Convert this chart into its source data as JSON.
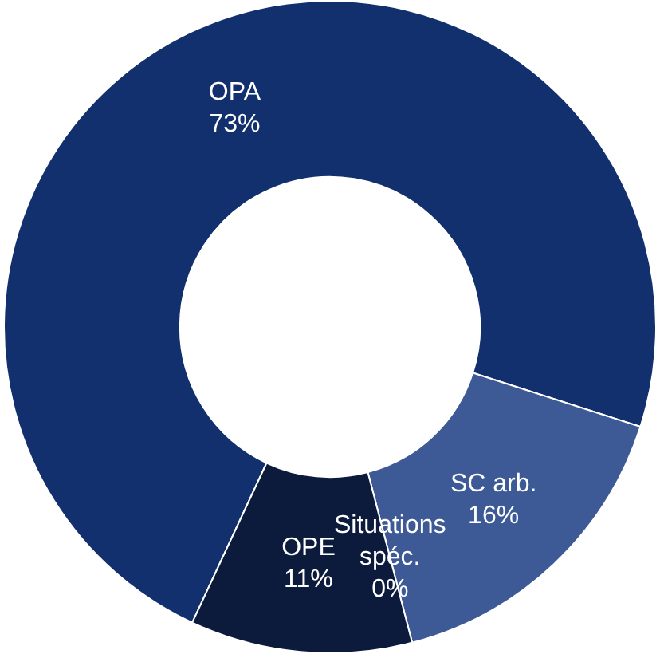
{
  "chart_data": {
    "type": "donut",
    "categories": [
      "OPA",
      "SC arb.",
      "Situations spéc.",
      "OPE"
    ],
    "values": [
      73,
      16,
      0,
      11
    ],
    "value_labels": [
      "73%",
      "16%",
      "0%",
      "11%"
    ],
    "colors": [
      "#13306e",
      "#3d5a96",
      "#6f86bd",
      "#0c1a3c"
    ],
    "legend": false
  }
}
